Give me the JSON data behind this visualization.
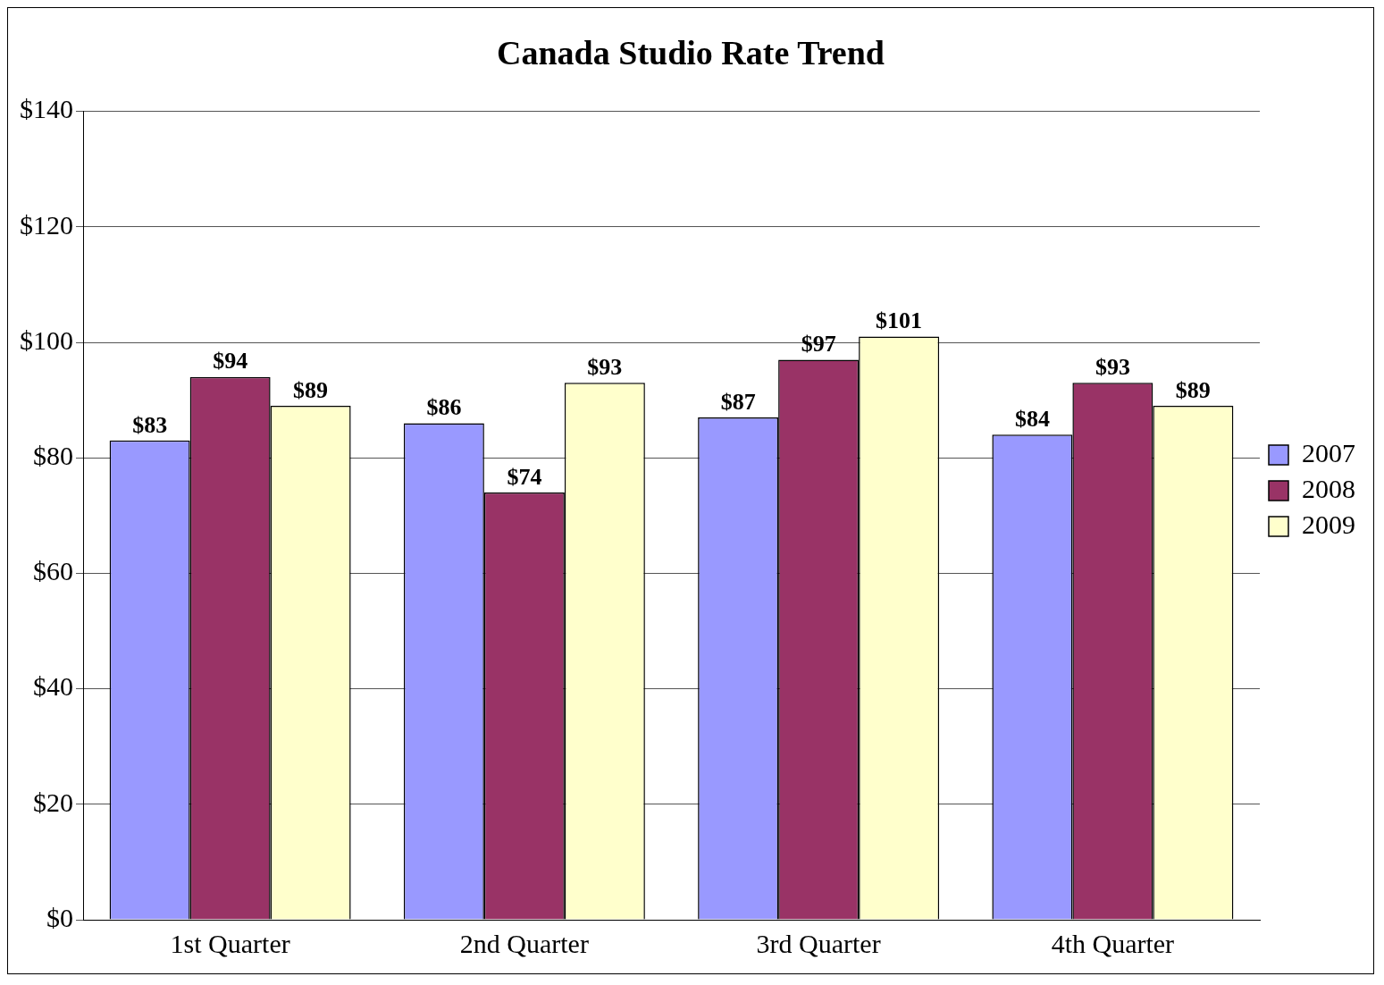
{
  "chart_data": {
    "type": "bar",
    "title": "Canada Studio Rate Trend",
    "categories": [
      "1st Quarter",
      "2nd Quarter",
      "3rd Quarter",
      "4th Quarter"
    ],
    "series": [
      {
        "name": "2007",
        "color": "#9999ff",
        "values": [
          83,
          86,
          87,
          84
        ],
        "value_labels": [
          "$83",
          "$86",
          "$87",
          "$84"
        ]
      },
      {
        "name": "2008",
        "color": "#993366",
        "values": [
          94,
          74,
          97,
          93
        ],
        "value_labels": [
          "$94",
          "$74",
          "$97",
          "$93"
        ]
      },
      {
        "name": "2009",
        "color": "#ffffcc",
        "values": [
          89,
          93,
          101,
          89
        ],
        "value_labels": [
          "$89",
          "$93",
          "$101",
          "$89"
        ]
      }
    ],
    "ylim": [
      0,
      140
    ],
    "yticks": [
      {
        "value": 0,
        "label": "$0"
      },
      {
        "value": 20,
        "label": "$20"
      },
      {
        "value": 40,
        "label": "$40"
      },
      {
        "value": 60,
        "label": "$60"
      },
      {
        "value": 80,
        "label": "$80"
      },
      {
        "value": 100,
        "label": "$100"
      },
      {
        "value": 120,
        "label": "$120"
      },
      {
        "value": 140,
        "label": "$140"
      }
    ],
    "grid": "y",
    "legend": "right"
  }
}
